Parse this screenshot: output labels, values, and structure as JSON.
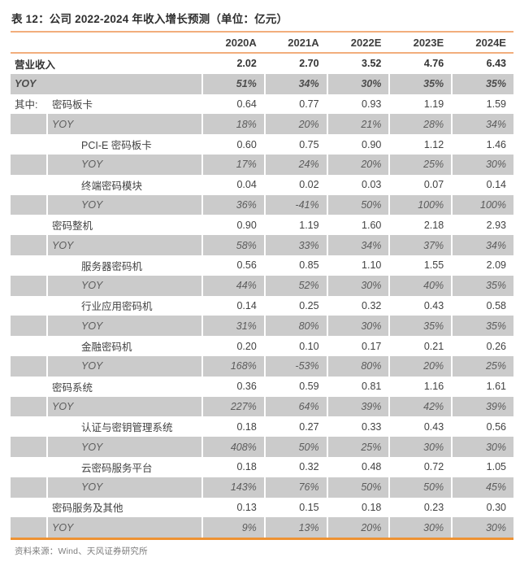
{
  "page": {
    "title": "表 12：公司 2022-2024 年收入增长预测（单位：亿元）",
    "source": "资料来源：Wind、天风证券研究所"
  },
  "colors": {
    "accent_line": "#F2AE7C",
    "bottom_line": "#ED9233",
    "band": "#CBCBCB"
  },
  "table": {
    "columns": [
      "2020A",
      "2021A",
      "2022E",
      "2023E",
      "2024E"
    ],
    "rows": [
      {
        "label": "营业收入",
        "type": "value",
        "level": 0,
        "merged": true,
        "bold": true,
        "prefix": "",
        "values": [
          "2.02",
          "2.70",
          "3.52",
          "4.76",
          "6.43"
        ]
      },
      {
        "label": "YOY",
        "type": "yoy",
        "level": 0,
        "merged": true,
        "bold": true,
        "prefix": "",
        "values": [
          "51%",
          "34%",
          "30%",
          "35%",
          "35%"
        ]
      },
      {
        "label": "密码板卡",
        "type": "value",
        "level": 1,
        "merged": false,
        "bold": false,
        "prefix": "其中:",
        "values": [
          "0.64",
          "0.77",
          "0.93",
          "1.19",
          "1.59"
        ]
      },
      {
        "label": "YOY",
        "type": "yoy",
        "level": 1,
        "merged": false,
        "bold": false,
        "prefix": "",
        "values": [
          "18%",
          "20%",
          "21%",
          "28%",
          "34%"
        ]
      },
      {
        "label": "PCI-E 密码板卡",
        "type": "value",
        "level": 2,
        "merged": false,
        "bold": false,
        "prefix": "",
        "values": [
          "0.60",
          "0.75",
          "0.90",
          "1.12",
          "1.46"
        ]
      },
      {
        "label": "YOY",
        "type": "yoy",
        "level": 2,
        "merged": false,
        "bold": false,
        "prefix": "",
        "values": [
          "17%",
          "24%",
          "20%",
          "25%",
          "30%"
        ]
      },
      {
        "label": "终端密码模块",
        "type": "value",
        "level": 2,
        "merged": false,
        "bold": false,
        "prefix": "",
        "values": [
          "0.04",
          "0.02",
          "0.03",
          "0.07",
          "0.14"
        ]
      },
      {
        "label": "YOY",
        "type": "yoy",
        "level": 2,
        "merged": false,
        "bold": false,
        "prefix": "",
        "values": [
          "36%",
          "-41%",
          "50%",
          "100%",
          "100%"
        ]
      },
      {
        "label": "密码整机",
        "type": "value",
        "level": 1,
        "merged": false,
        "bold": false,
        "prefix": "",
        "values": [
          "0.90",
          "1.19",
          "1.60",
          "2.18",
          "2.93"
        ]
      },
      {
        "label": "YOY",
        "type": "yoy",
        "level": 1,
        "merged": false,
        "bold": false,
        "prefix": "",
        "values": [
          "58%",
          "33%",
          "34%",
          "37%",
          "34%"
        ]
      },
      {
        "label": "服务器密码机",
        "type": "value",
        "level": 2,
        "merged": false,
        "bold": false,
        "prefix": "",
        "values": [
          "0.56",
          "0.85",
          "1.10",
          "1.55",
          "2.09"
        ]
      },
      {
        "label": "YOY",
        "type": "yoy",
        "level": 2,
        "merged": false,
        "bold": false,
        "prefix": "",
        "values": [
          "44%",
          "52%",
          "30%",
          "40%",
          "35%"
        ]
      },
      {
        "label": "行业应用密码机",
        "type": "value",
        "level": 2,
        "merged": false,
        "bold": false,
        "prefix": "",
        "values": [
          "0.14",
          "0.25",
          "0.32",
          "0.43",
          "0.58"
        ]
      },
      {
        "label": "YOY",
        "type": "yoy",
        "level": 2,
        "merged": false,
        "bold": false,
        "prefix": "",
        "values": [
          "31%",
          "80%",
          "30%",
          "35%",
          "35%"
        ]
      },
      {
        "label": "金融密码机",
        "type": "value",
        "level": 2,
        "merged": false,
        "bold": false,
        "prefix": "",
        "values": [
          "0.20",
          "0.10",
          "0.17",
          "0.21",
          "0.26"
        ]
      },
      {
        "label": "YOY",
        "type": "yoy",
        "level": 2,
        "merged": false,
        "bold": false,
        "prefix": "",
        "values": [
          "168%",
          "-53%",
          "80%",
          "20%",
          "25%"
        ]
      },
      {
        "label": "密码系统",
        "type": "value",
        "level": 1,
        "merged": false,
        "bold": false,
        "prefix": "",
        "values": [
          "0.36",
          "0.59",
          "0.81",
          "1.16",
          "1.61"
        ]
      },
      {
        "label": "YOY",
        "type": "yoy",
        "level": 1,
        "merged": false,
        "bold": false,
        "prefix": "",
        "values": [
          "227%",
          "64%",
          "39%",
          "42%",
          "39%"
        ]
      },
      {
        "label": "认证与密钥管理系统",
        "type": "value",
        "level": 2,
        "merged": false,
        "bold": false,
        "prefix": "",
        "values": [
          "0.18",
          "0.27",
          "0.33",
          "0.43",
          "0.56"
        ]
      },
      {
        "label": "YOY",
        "type": "yoy",
        "level": 2,
        "merged": false,
        "bold": false,
        "prefix": "",
        "values": [
          "408%",
          "50%",
          "25%",
          "30%",
          "30%"
        ]
      },
      {
        "label": "云密码服务平台",
        "type": "value",
        "level": 2,
        "merged": false,
        "bold": false,
        "prefix": "",
        "values": [
          "0.18",
          "0.32",
          "0.48",
          "0.72",
          "1.05"
        ]
      },
      {
        "label": "YOY",
        "type": "yoy",
        "level": 2,
        "merged": false,
        "bold": false,
        "prefix": "",
        "values": [
          "143%",
          "76%",
          "50%",
          "50%",
          "45%"
        ]
      },
      {
        "label": "密码服务及其他",
        "type": "value",
        "level": 1,
        "merged": false,
        "bold": false,
        "prefix": "",
        "values": [
          "0.13",
          "0.15",
          "0.18",
          "0.23",
          "0.30"
        ]
      },
      {
        "label": "YOY",
        "type": "yoy",
        "level": 1,
        "merged": false,
        "bold": false,
        "prefix": "",
        "values": [
          "9%",
          "13%",
          "20%",
          "30%",
          "30%"
        ]
      }
    ]
  }
}
